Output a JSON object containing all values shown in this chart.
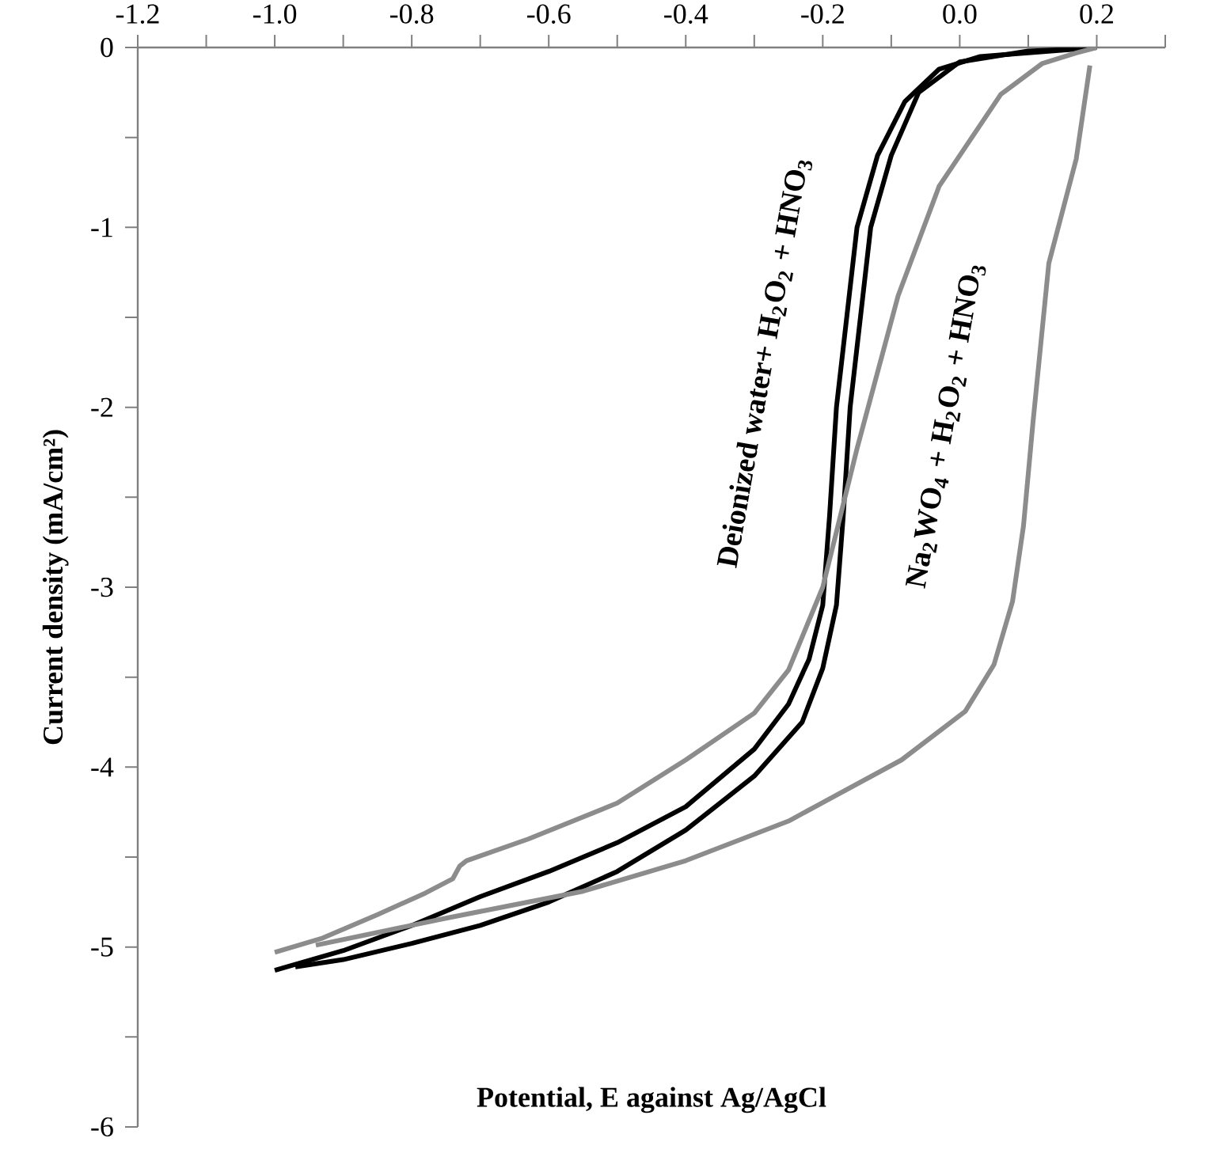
{
  "chart_data": {
    "type": "line",
    "xlabel": "Potential, E against Ag/AgCl",
    "ylabel": "Current density (mA/cm²)",
    "xlim": [
      -1.2,
      0.3
    ],
    "ylim": [
      -6,
      0
    ],
    "xticks": [
      -1.2,
      {
        "value": -1.1,
        "label": null
      },
      {
        "value": -1.0,
        "label": "-1.0"
      },
      {
        "value": -0.9,
        "label": null
      },
      -0.8,
      {
        "value": -0.7,
        "label": null
      },
      -0.6,
      {
        "value": -0.5,
        "label": null
      },
      -0.4,
      {
        "value": -0.3,
        "label": null
      },
      -0.2,
      {
        "value": -0.1,
        "label": null
      },
      {
        "value": 0.0,
        "label": "0.0"
      },
      {
        "value": 0.1,
        "label": null
      },
      0.2,
      {
        "value": 0.3,
        "label": null
      }
    ],
    "yticks": [
      0,
      {
        "value": -0.5,
        "label": null
      },
      -1,
      {
        "value": -1.5,
        "label": null
      },
      -2,
      {
        "value": -2.5,
        "label": null
      },
      -3,
      {
        "value": -3.5,
        "label": null
      },
      -4,
      {
        "value": -4.5,
        "label": null
      },
      -5,
      {
        "value": -5.5,
        "label": null
      },
      -6
    ],
    "grid": false,
    "legend": false,
    "marker": "none",
    "line_style": "solid",
    "series": [
      {
        "name": "Deionized water+ H$_{2}$O$_{2}$ + HNO$_{3}$",
        "color": "#000000",
        "x": [
          -1.0,
          -0.9,
          -0.8,
          -0.7,
          -0.6,
          -0.5,
          -0.4,
          -0.3,
          -0.25,
          -0.22,
          -0.2,
          -0.19,
          -0.18,
          -0.165,
          -0.15,
          -0.12,
          -0.08,
          -0.03,
          0.03,
          0.1,
          0.2
        ],
        "values": [
          -5.13,
          -5.02,
          -4.88,
          -4.72,
          -4.58,
          -4.42,
          -4.22,
          -3.9,
          -3.65,
          -3.4,
          -3.1,
          -2.6,
          -2.0,
          -1.5,
          -1.0,
          -0.6,
          -0.3,
          -0.12,
          -0.05,
          -0.03,
          0
        ]
      },
      {
        "color": "#000000",
        "x": [
          -0.97,
          -0.9,
          -0.8,
          -0.7,
          -0.6,
          -0.5,
          -0.4,
          -0.3,
          -0.23,
          -0.2,
          -0.18,
          -0.17,
          -0.16,
          -0.145,
          -0.13,
          -0.1,
          -0.06,
          0.0,
          0.1,
          0.16
        ],
        "values": [
          -5.11,
          -5.07,
          -4.98,
          -4.88,
          -4.75,
          -4.58,
          -4.35,
          -4.05,
          -3.75,
          -3.45,
          -3.1,
          -2.6,
          -2.0,
          -1.5,
          -1.0,
          -0.6,
          -0.25,
          -0.08,
          -0.02,
          -0.01
        ]
      },
      {
        "name": "Na$_{2}$WO$_{4}$ + H$_{2}$O$_{2}$ + HNO$_{3}$",
        "color": "#8c8c8c",
        "x": [
          -1.0,
          -0.93,
          -0.85,
          -0.78,
          -0.74,
          -0.73,
          -0.72,
          -0.63,
          -0.5,
          -0.4,
          -0.3,
          -0.25,
          -0.2,
          -0.15,
          -0.09,
          -0.03,
          0.06,
          0.12,
          0.17,
          0.2
        ],
        "values": [
          -5.03,
          -4.95,
          -4.82,
          -4.7,
          -4.62,
          -4.55,
          -4.52,
          -4.4,
          -4.2,
          -3.96,
          -3.7,
          -3.46,
          -3.0,
          -2.23,
          -1.38,
          -0.77,
          -0.26,
          -0.09,
          -0.03,
          0
        ]
      },
      {
        "color": "#8c8c8c",
        "x": [
          -0.94,
          -0.75,
          -0.55,
          -0.4,
          -0.25,
          -0.085,
          0.008,
          0.05,
          0.077,
          0.093,
          0.107,
          0.13,
          0.17,
          0.19
        ],
        "values": [
          -4.99,
          -4.84,
          -4.69,
          -4.52,
          -4.3,
          -3.96,
          -3.69,
          -3.43,
          -3.08,
          -2.66,
          -2.08,
          -1.2,
          -0.62,
          -0.1
        ]
      }
    ]
  }
}
